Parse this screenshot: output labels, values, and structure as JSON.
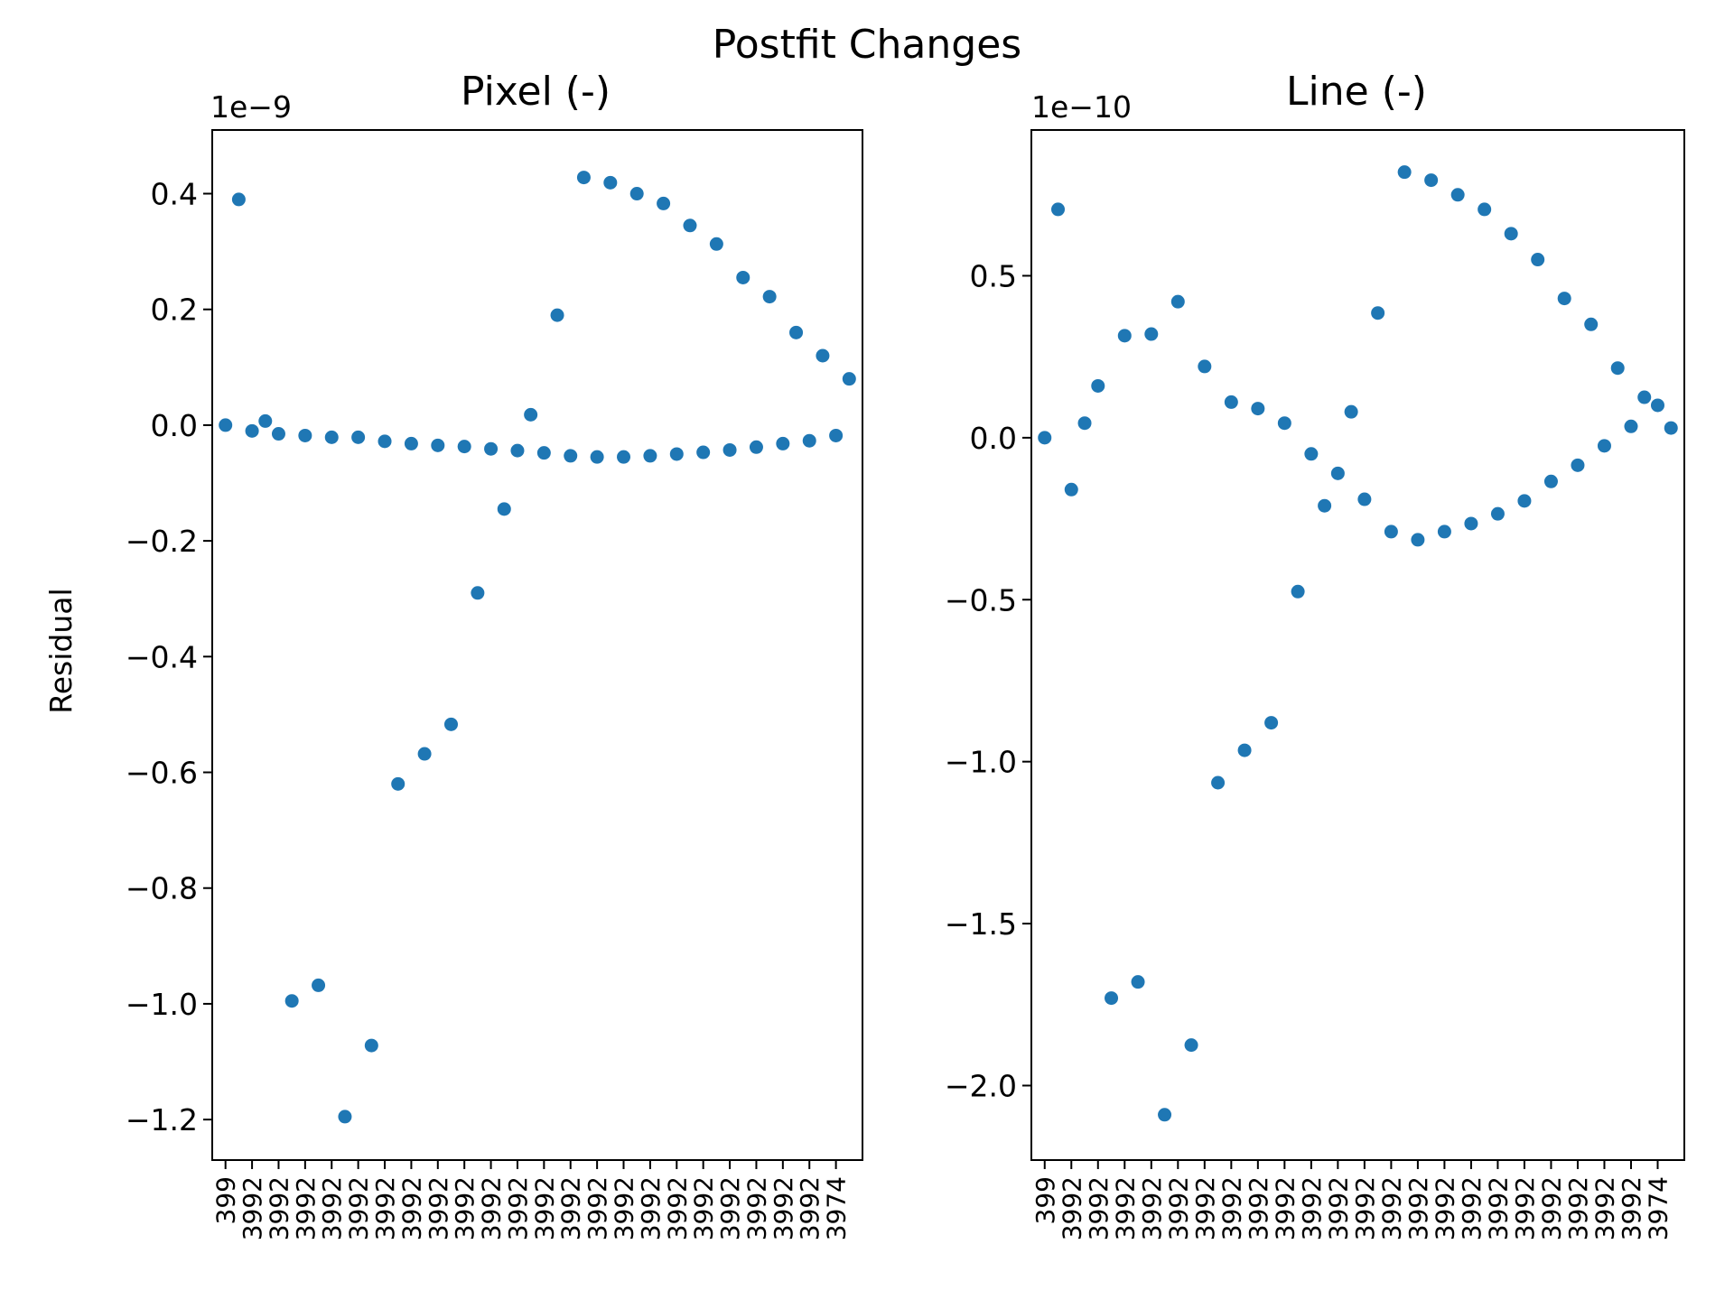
{
  "figure": {
    "suptitle": "Postfit Changes"
  },
  "chart_data": [
    {
      "type": "scatter",
      "title": "Pixel (-)",
      "ylabel": "Residual",
      "xlabel": "",
      "offset_text": "1e−9",
      "ylim": [
        -1.27,
        0.51
      ],
      "ytick_values": [
        0.4,
        0.2,
        0.0,
        -0.2,
        -0.4,
        -0.6,
        -0.8,
        -1.0,
        -1.2
      ],
      "ytick_labels": [
        "0.4",
        "0.2",
        "0.0",
        "−0.2",
        "−0.4",
        "−0.6",
        "−0.8",
        "−1.0",
        "−1.2"
      ],
      "xtick_count": 24,
      "xtick_labels": [
        "399",
        "3992",
        "3992",
        "3992",
        "3992",
        "3992",
        "3992",
        "3992",
        "3992",
        "3992",
        "3992",
        "3992",
        "3992",
        "3992",
        "3992",
        "3992",
        "3992",
        "3992",
        "3992",
        "3992",
        "3992",
        "3992",
        "3992",
        "3974"
      ],
      "xlim": [
        -1,
        48
      ],
      "x": [
        0,
        1,
        2,
        3,
        4,
        5,
        6,
        7,
        8,
        9,
        10,
        11,
        12,
        13,
        14,
        15,
        16,
        17,
        18,
        19,
        20,
        21,
        22,
        23,
        24,
        25,
        26,
        27,
        28,
        29,
        30,
        31,
        32,
        33,
        34,
        35,
        36,
        37,
        38,
        39,
        40,
        41,
        42,
        43,
        44,
        45,
        46,
        47
      ],
      "y": [
        0.0,
        0.39,
        -0.01,
        0.007,
        -0.015,
        -0.995,
        -0.018,
        -0.968,
        -0.021,
        -1.195,
        -0.021,
        -1.072,
        -0.028,
        -0.62,
        -0.032,
        -0.568,
        -0.035,
        -0.517,
        -0.037,
        -0.29,
        -0.041,
        -0.145,
        -0.044,
        0.018,
        -0.048,
        0.19,
        -0.053,
        0.428,
        -0.055,
        0.419,
        -0.055,
        0.4,
        -0.053,
        0.383,
        -0.05,
        0.345,
        -0.047,
        0.313,
        -0.043,
        0.255,
        -0.038,
        0.222,
        -0.032,
        0.16,
        -0.027,
        0.12,
        -0.018,
        0.08
      ]
    },
    {
      "type": "scatter",
      "title": "Line (-)",
      "ylabel": "",
      "xlabel": "",
      "offset_text": "1e−10",
      "ylim": [
        -2.23,
        0.95
      ],
      "ytick_values": [
        0.5,
        0.0,
        -0.5,
        -1.0,
        -1.5,
        -2.0
      ],
      "ytick_labels": [
        "0.5",
        "0.0",
        "−0.5",
        "−1.0",
        "−1.5",
        "−2.0"
      ],
      "xtick_count": 24,
      "xtick_labels": [
        "399",
        "3992",
        "3992",
        "3992",
        "3992",
        "3992",
        "3992",
        "3992",
        "3992",
        "3992",
        "3992",
        "3992",
        "3992",
        "3992",
        "3992",
        "3992",
        "3992",
        "3992",
        "3992",
        "3992",
        "3992",
        "3992",
        "3992",
        "3974"
      ],
      "xlim": [
        -1,
        48
      ],
      "x": [
        0,
        1,
        2,
        3,
        4,
        5,
        6,
        7,
        8,
        9,
        10,
        11,
        12,
        13,
        14,
        15,
        16,
        17,
        18,
        19,
        20,
        21,
        22,
        23,
        24,
        25,
        26,
        27,
        28,
        29,
        30,
        31,
        32,
        33,
        34,
        35,
        36,
        37,
        38,
        39,
        40,
        41,
        42,
        43,
        44,
        45,
        46,
        47
      ],
      "y": [
        0.0,
        0.705,
        -0.16,
        0.045,
        0.16,
        -1.73,
        0.315,
        -1.68,
        0.32,
        -2.09,
        0.42,
        -1.875,
        0.22,
        -1.065,
        0.11,
        -0.965,
        0.09,
        -0.88,
        0.045,
        -0.475,
        -0.05,
        -0.21,
        -0.11,
        0.08,
        -0.19,
        0.385,
        -0.29,
        0.82,
        -0.315,
        0.795,
        -0.29,
        0.75,
        -0.265,
        0.705,
        -0.235,
        0.63,
        -0.195,
        0.55,
        -0.135,
        0.43,
        -0.085,
        0.35,
        -0.025,
        0.215,
        0.035,
        0.125,
        0.1,
        0.03
      ]
    }
  ]
}
